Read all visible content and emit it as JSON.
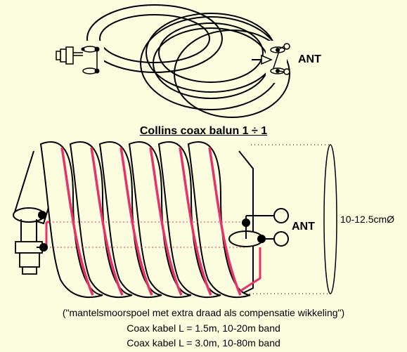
{
  "title": "Collins coax balun 1 ÷ 1",
  "top_diagram": {
    "antenna_label": "ANT"
  },
  "bottom_diagram": {
    "antenna_label": "ANT",
    "diameter_label": "10-12.5cmØ"
  },
  "caption": {
    "line1": "(\"mantelsmoorspoel met extra draad als compensatie wikkeling\")",
    "line2": "Coax kabel L = 1.5m, 10-20m band",
    "line3": "Coax kabel L = 3.0m, 10-80m band"
  },
  "colors": {
    "background": "#fcfcdf",
    "compensation_wire": "#e8306a",
    "outline": "#000000"
  }
}
